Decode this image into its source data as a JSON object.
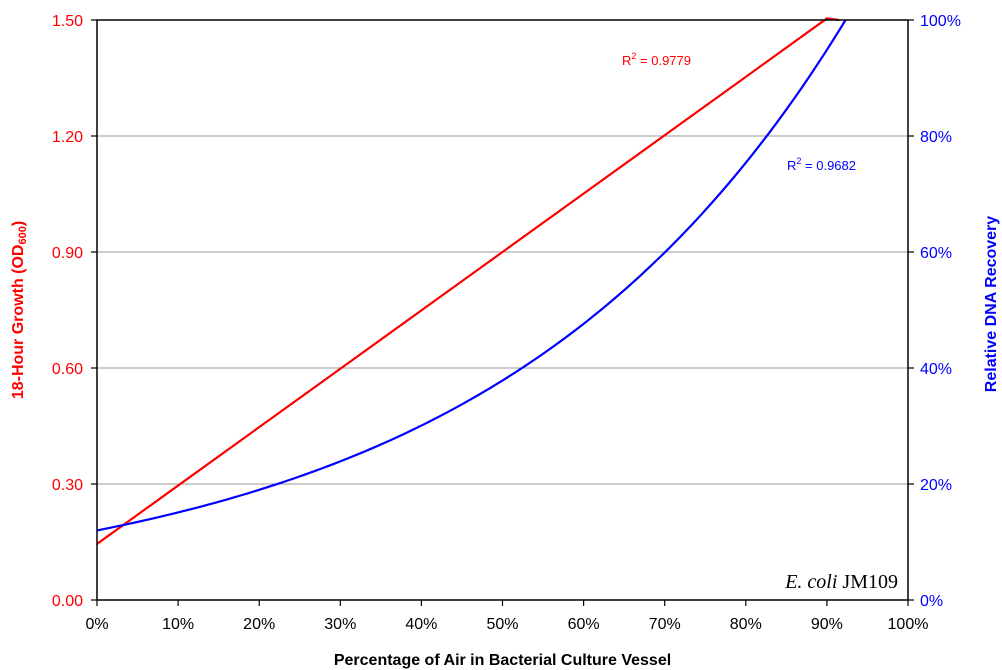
{
  "chart_data": {
    "type": "line",
    "xlabel": "Percentage of Air in Bacterial Culture Vessel",
    "ylabel_left": {
      "main": "18-Hour Growth (OD",
      "sub": "600",
      "close": ")"
    },
    "ylabel_right": "Relative DNA Recovery",
    "xlim": [
      0,
      100
    ],
    "ylim_left": [
      0,
      1.5
    ],
    "ylim_right": [
      0,
      100
    ],
    "x_ticks": [
      "0%",
      "10%",
      "20%",
      "30%",
      "40%",
      "50%",
      "60%",
      "70%",
      "80%",
      "90%",
      "100%"
    ],
    "y_left_ticks": [
      "0.00",
      "0.30",
      "0.60",
      "0.90",
      "1.20",
      "1.50"
    ],
    "y_right_ticks": [
      "0%",
      "20%",
      "40%",
      "60%",
      "80%",
      "100%"
    ],
    "grid": "horizontal",
    "series": [
      {
        "axis": "left",
        "color": "#ff0000",
        "trend": "linear",
        "x": [
          0,
          10,
          20,
          30,
          40,
          50,
          60,
          70,
          80,
          90,
          91.5
        ],
        "values": [
          0.145,
          0.296,
          0.447,
          0.598,
          0.749,
          0.9,
          1.051,
          1.202,
          1.353,
          1.504,
          1.5
        ]
      },
      {
        "axis": "right",
        "color": "#0000ff",
        "trend": "exponential",
        "x": [
          0,
          10,
          20,
          30,
          40,
          50,
          60,
          70,
          80,
          90,
          92.3
        ],
        "values": [
          12,
          15.1,
          19.1,
          24.1,
          30.3,
          38.2,
          48.2,
          60.7,
          76.4,
          96.3,
          100
        ]
      }
    ],
    "annotations": [
      {
        "series": 0,
        "base": "R",
        "sup": "2",
        "rest": " = 0.9779",
        "color": "#ff0000"
      },
      {
        "series": 1,
        "base": "R",
        "sup": "2",
        "rest": " = 0.9682",
        "color": "#0000ff"
      }
    ],
    "strain_label": {
      "italic": "E. coli",
      "plain": " JM109"
    }
  }
}
